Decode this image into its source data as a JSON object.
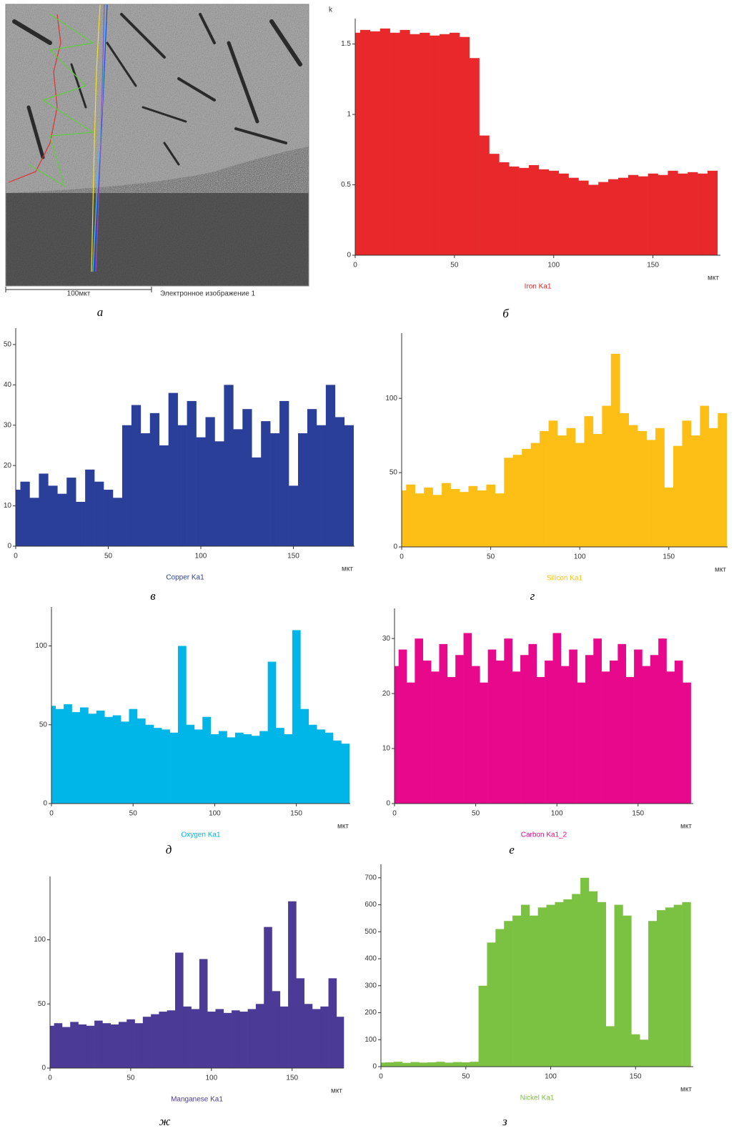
{
  "image": {
    "scale_label": "100мкт",
    "caption": "Электронное изображение 1",
    "panel_label": "а"
  },
  "chart_data": [
    {
      "type": "bar",
      "panel_label": "б",
      "ylabel": "k",
      "xlabel": "мкт",
      "x": [
        0,
        5,
        10,
        15,
        20,
        25,
        30,
        35,
        40,
        45,
        50,
        55,
        60,
        65,
        70,
        75,
        80,
        85,
        90,
        95,
        100,
        105,
        110,
        115,
        120,
        125,
        130,
        135,
        140,
        145,
        150,
        155,
        160,
        165,
        170,
        175,
        180
      ],
      "series": [
        {
          "name": "Iron Ka1",
          "color": "#e8282a",
          "values": [
            1.58,
            1.6,
            1.59,
            1.61,
            1.58,
            1.6,
            1.57,
            1.58,
            1.56,
            1.57,
            1.58,
            1.55,
            1.4,
            0.85,
            0.72,
            0.66,
            0.63,
            0.62,
            0.64,
            0.61,
            0.6,
            0.58,
            0.55,
            0.53,
            0.5,
            0.52,
            0.54,
            0.55,
            0.57,
            0.56,
            0.58,
            0.57,
            0.6,
            0.58,
            0.59,
            0.58,
            0.6
          ]
        }
      ],
      "xlim": [
        0,
        184
      ],
      "ylim": [
        0,
        1.65
      ],
      "xticks": [
        0,
        50,
        100,
        150
      ],
      "yticks": [
        0,
        0.5,
        1,
        1.5
      ]
    },
    {
      "type": "bar",
      "panel_label": "в",
      "xlabel": "мкт",
      "x": [
        0,
        5,
        10,
        15,
        20,
        25,
        30,
        35,
        40,
        45,
        50,
        55,
        60,
        65,
        70,
        75,
        80,
        85,
        90,
        95,
        100,
        105,
        110,
        115,
        120,
        125,
        130,
        135,
        140,
        145,
        150,
        155,
        160,
        165,
        170,
        175,
        180
      ],
      "series": [
        {
          "name": "Copper Ka1",
          "color": "#2a3f99",
          "values": [
            14,
            16,
            12,
            18,
            15,
            13,
            17,
            11,
            19,
            16,
            14,
            12,
            30,
            35,
            28,
            33,
            25,
            38,
            30,
            36,
            27,
            32,
            26,
            40,
            29,
            34,
            22,
            31,
            28,
            36,
            15,
            28,
            34,
            30,
            40,
            32,
            30
          ]
        }
      ],
      "xlim": [
        0,
        183
      ],
      "ylim": [
        0,
        53
      ],
      "xticks": [
        0,
        50,
        100,
        150
      ],
      "yticks": [
        0,
        10,
        20,
        30,
        40,
        50
      ]
    },
    {
      "type": "bar",
      "panel_label": "г",
      "xlabel": "мкт",
      "x": [
        0,
        5,
        10,
        15,
        20,
        25,
        30,
        35,
        40,
        45,
        50,
        55,
        60,
        65,
        70,
        75,
        80,
        85,
        90,
        95,
        100,
        105,
        110,
        115,
        120,
        125,
        130,
        135,
        140,
        145,
        150,
        155,
        160,
        165,
        170,
        175,
        180
      ],
      "series": [
        {
          "name": "Silicon Ka1",
          "color": "#fdbf16",
          "values": [
            38,
            42,
            36,
            40,
            35,
            43,
            39,
            37,
            41,
            38,
            42,
            36,
            60,
            62,
            66,
            70,
            78,
            85,
            75,
            80,
            70,
            88,
            76,
            95,
            130,
            90,
            82,
            78,
            72,
            80,
            40,
            68,
            85,
            75,
            95,
            80,
            90
          ]
        }
      ],
      "xlim": [
        0,
        183
      ],
      "ylim": [
        0,
        141
      ],
      "xticks": [
        0,
        50,
        100,
        150
      ],
      "yticks": [
        0,
        50,
        100
      ]
    },
    {
      "type": "bar",
      "panel_label": "д",
      "xlabel": "мкт",
      "x": [
        0,
        5,
        10,
        15,
        20,
        25,
        30,
        35,
        40,
        45,
        50,
        55,
        60,
        65,
        70,
        75,
        80,
        85,
        90,
        95,
        100,
        105,
        110,
        115,
        120,
        125,
        130,
        135,
        140,
        145,
        150,
        155,
        160,
        165,
        170,
        175,
        180
      ],
      "series": [
        {
          "name": "Oxygen Ka1",
          "color": "#00b5e8",
          "values": [
            62,
            60,
            63,
            58,
            61,
            57,
            59,
            55,
            56,
            52,
            60,
            54,
            50,
            48,
            47,
            45,
            100,
            50,
            47,
            55,
            44,
            46,
            42,
            45,
            44,
            43,
            46,
            90,
            48,
            44,
            110,
            60,
            50,
            47,
            45,
            40,
            38
          ]
        }
      ],
      "xlim": [
        0,
        183
      ],
      "ylim": [
        0,
        122
      ],
      "xticks": [
        0,
        50,
        100,
        150
      ],
      "yticks": [
        0,
        50,
        100
      ]
    },
    {
      "type": "bar",
      "panel_label": "е",
      "xlabel": "мкт",
      "x": [
        0,
        5,
        10,
        15,
        20,
        25,
        30,
        35,
        40,
        45,
        50,
        55,
        60,
        65,
        70,
        75,
        80,
        85,
        90,
        95,
        100,
        105,
        110,
        115,
        120,
        125,
        130,
        135,
        140,
        145,
        150,
        155,
        160,
        165,
        170,
        175,
        180
      ],
      "series": [
        {
          "name": "Carbon Ka1_2",
          "color": "#e8088c",
          "values": [
            25,
            28,
            22,
            30,
            26,
            24,
            29,
            23,
            27,
            31,
            25,
            22,
            28,
            26,
            30,
            24,
            27,
            29,
            23,
            26,
            31,
            25,
            28,
            22,
            27,
            30,
            24,
            26,
            29,
            23,
            28,
            25,
            27,
            30,
            24,
            26,
            22
          ]
        }
      ],
      "xlim": [
        0,
        184
      ],
      "ylim": [
        0,
        34.7
      ],
      "xticks": [
        0,
        50,
        100,
        150
      ],
      "yticks": [
        0,
        10,
        20,
        30
      ]
    },
    {
      "type": "bar",
      "panel_label": "ж",
      "xlabel": "мкт",
      "x": [
        0,
        5,
        10,
        15,
        20,
        25,
        30,
        35,
        40,
        45,
        50,
        55,
        60,
        65,
        70,
        75,
        80,
        85,
        90,
        95,
        100,
        105,
        110,
        115,
        120,
        125,
        130,
        135,
        140,
        145,
        150,
        155,
        160,
        165,
        170,
        175,
        180
      ],
      "series": [
        {
          "name": "Manganese Ka1",
          "color": "#4b3a96",
          "values": [
            33,
            35,
            32,
            36,
            34,
            33,
            37,
            35,
            34,
            36,
            38,
            35,
            40,
            42,
            44,
            45,
            90,
            48,
            46,
            85,
            44,
            46,
            43,
            45,
            44,
            46,
            50,
            110,
            60,
            48,
            130,
            70,
            50,
            46,
            48,
            70,
            40
          ]
        }
      ],
      "xlim": [
        0,
        182
      ],
      "ylim": [
        0,
        146
      ],
      "xticks": [
        0,
        50,
        100,
        150
      ],
      "yticks": [
        0,
        50,
        100
      ]
    },
    {
      "type": "bar",
      "panel_label": "з",
      "xlabel": "мкт",
      "x": [
        0,
        5,
        10,
        15,
        20,
        25,
        30,
        35,
        40,
        45,
        50,
        55,
        60,
        65,
        70,
        75,
        80,
        85,
        90,
        95,
        100,
        105,
        110,
        115,
        120,
        125,
        130,
        135,
        140,
        145,
        150,
        155,
        160,
        165,
        170,
        175,
        180
      ],
      "series": [
        {
          "name": "Nickel Ka1",
          "color": "#7cc242",
          "values": [
            15,
            16,
            18,
            14,
            17,
            15,
            16,
            18,
            15,
            17,
            16,
            18,
            300,
            460,
            510,
            540,
            560,
            600,
            560,
            590,
            600,
            610,
            620,
            640,
            700,
            650,
            610,
            150,
            600,
            560,
            120,
            100,
            540,
            580,
            590,
            600,
            610
          ]
        }
      ],
      "xlim": [
        0,
        184
      ],
      "ylim": [
        0,
        734
      ],
      "xticks": [
        0,
        50,
        100,
        150
      ],
      "yticks": [
        0,
        100,
        200,
        300,
        400,
        500,
        600,
        700
      ]
    }
  ]
}
